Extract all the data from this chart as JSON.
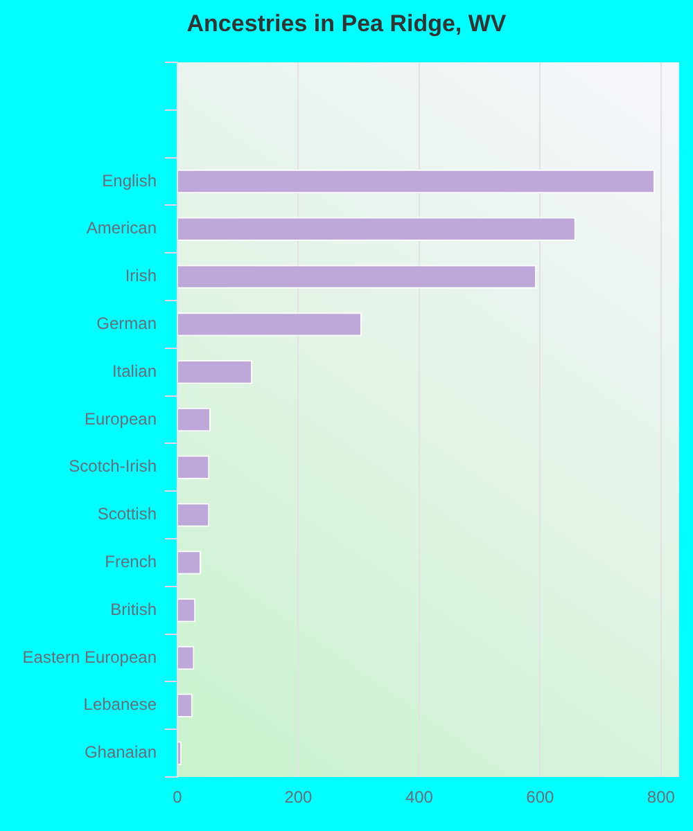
{
  "chart_data": {
    "type": "bar",
    "orientation": "horizontal",
    "title": "Ancestries in Pea Ridge, WV",
    "categories": [
      null,
      null,
      "English",
      "American",
      "Irish",
      "German",
      "Italian",
      "European",
      "Scotch-Irish",
      "Scottish",
      "French",
      "British",
      "Eastern European",
      "Lebanese",
      "Ghanaian"
    ],
    "values": [
      null,
      null,
      790,
      659,
      594,
      305,
      124,
      55,
      53,
      53,
      39,
      30,
      28,
      25,
      7
    ],
    "color": "#bea8d9",
    "xlim": [
      0,
      830
    ],
    "xticks": [
      0,
      200,
      400,
      600,
      800
    ],
    "grid": "x",
    "legend": false
  }
}
